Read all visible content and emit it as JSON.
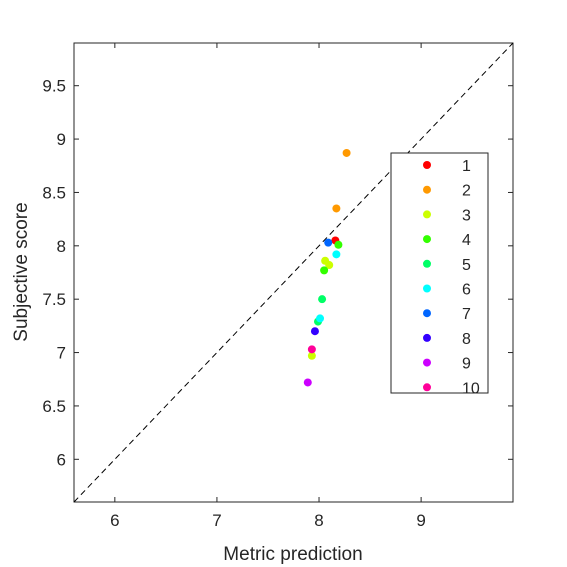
{
  "chart_data": {
    "type": "scatter",
    "xlabel": "Metric prediction",
    "ylabel": "Subjective score",
    "xlim": [
      5.6,
      9.9
    ],
    "ylim": [
      5.6,
      9.9
    ],
    "x_ticks": [
      6,
      7,
      8,
      9
    ],
    "y_ticks": [
      6,
      6.5,
      7,
      7.5,
      8,
      8.5,
      9,
      9.5
    ],
    "x_tick_labels": [
      "6",
      "7",
      "8",
      "9"
    ],
    "y_tick_labels": [
      "6",
      "6.5",
      "7",
      "7.5",
      "8",
      "8.5",
      "9",
      "9.5"
    ],
    "grid": false,
    "reference_line": {
      "style": "dashed",
      "from": [
        5.6,
        5.6
      ],
      "to": [
        9.9,
        9.9
      ],
      "color": "#000000"
    },
    "legend_position": "right",
    "series": [
      {
        "name": "1",
        "color": "#ff0000",
        "points": [
          [
            8.16,
            8.05
          ]
        ]
      },
      {
        "name": "2",
        "color": "#ff9900",
        "points": [
          [
            8.27,
            8.87
          ],
          [
            8.17,
            8.35
          ]
        ]
      },
      {
        "name": "3",
        "color": "#ccff00",
        "points": [
          [
            8.1,
            7.82
          ],
          [
            8.06,
            7.86
          ],
          [
            7.93,
            6.97
          ]
        ]
      },
      {
        "name": "4",
        "color": "#33ff00",
        "points": [
          [
            8.19,
            8.01
          ],
          [
            8.05,
            7.77
          ]
        ]
      },
      {
        "name": "5",
        "color": "#00ff66",
        "points": [
          [
            8.03,
            7.5
          ],
          [
            7.99,
            7.29
          ]
        ]
      },
      {
        "name": "6",
        "color": "#00ffff",
        "points": [
          [
            8.17,
            7.92
          ],
          [
            8.01,
            7.32
          ]
        ]
      },
      {
        "name": "7",
        "color": "#0066ff",
        "points": [
          [
            8.09,
            8.03
          ]
        ]
      },
      {
        "name": "8",
        "color": "#3300ff",
        "points": [
          [
            7.96,
            7.2
          ]
        ]
      },
      {
        "name": "9",
        "color": "#cc00ff",
        "points": [
          [
            7.89,
            6.72
          ]
        ]
      },
      {
        "name": "10",
        "color": "#ff0099",
        "points": [
          [
            7.93,
            7.03
          ]
        ]
      }
    ]
  }
}
